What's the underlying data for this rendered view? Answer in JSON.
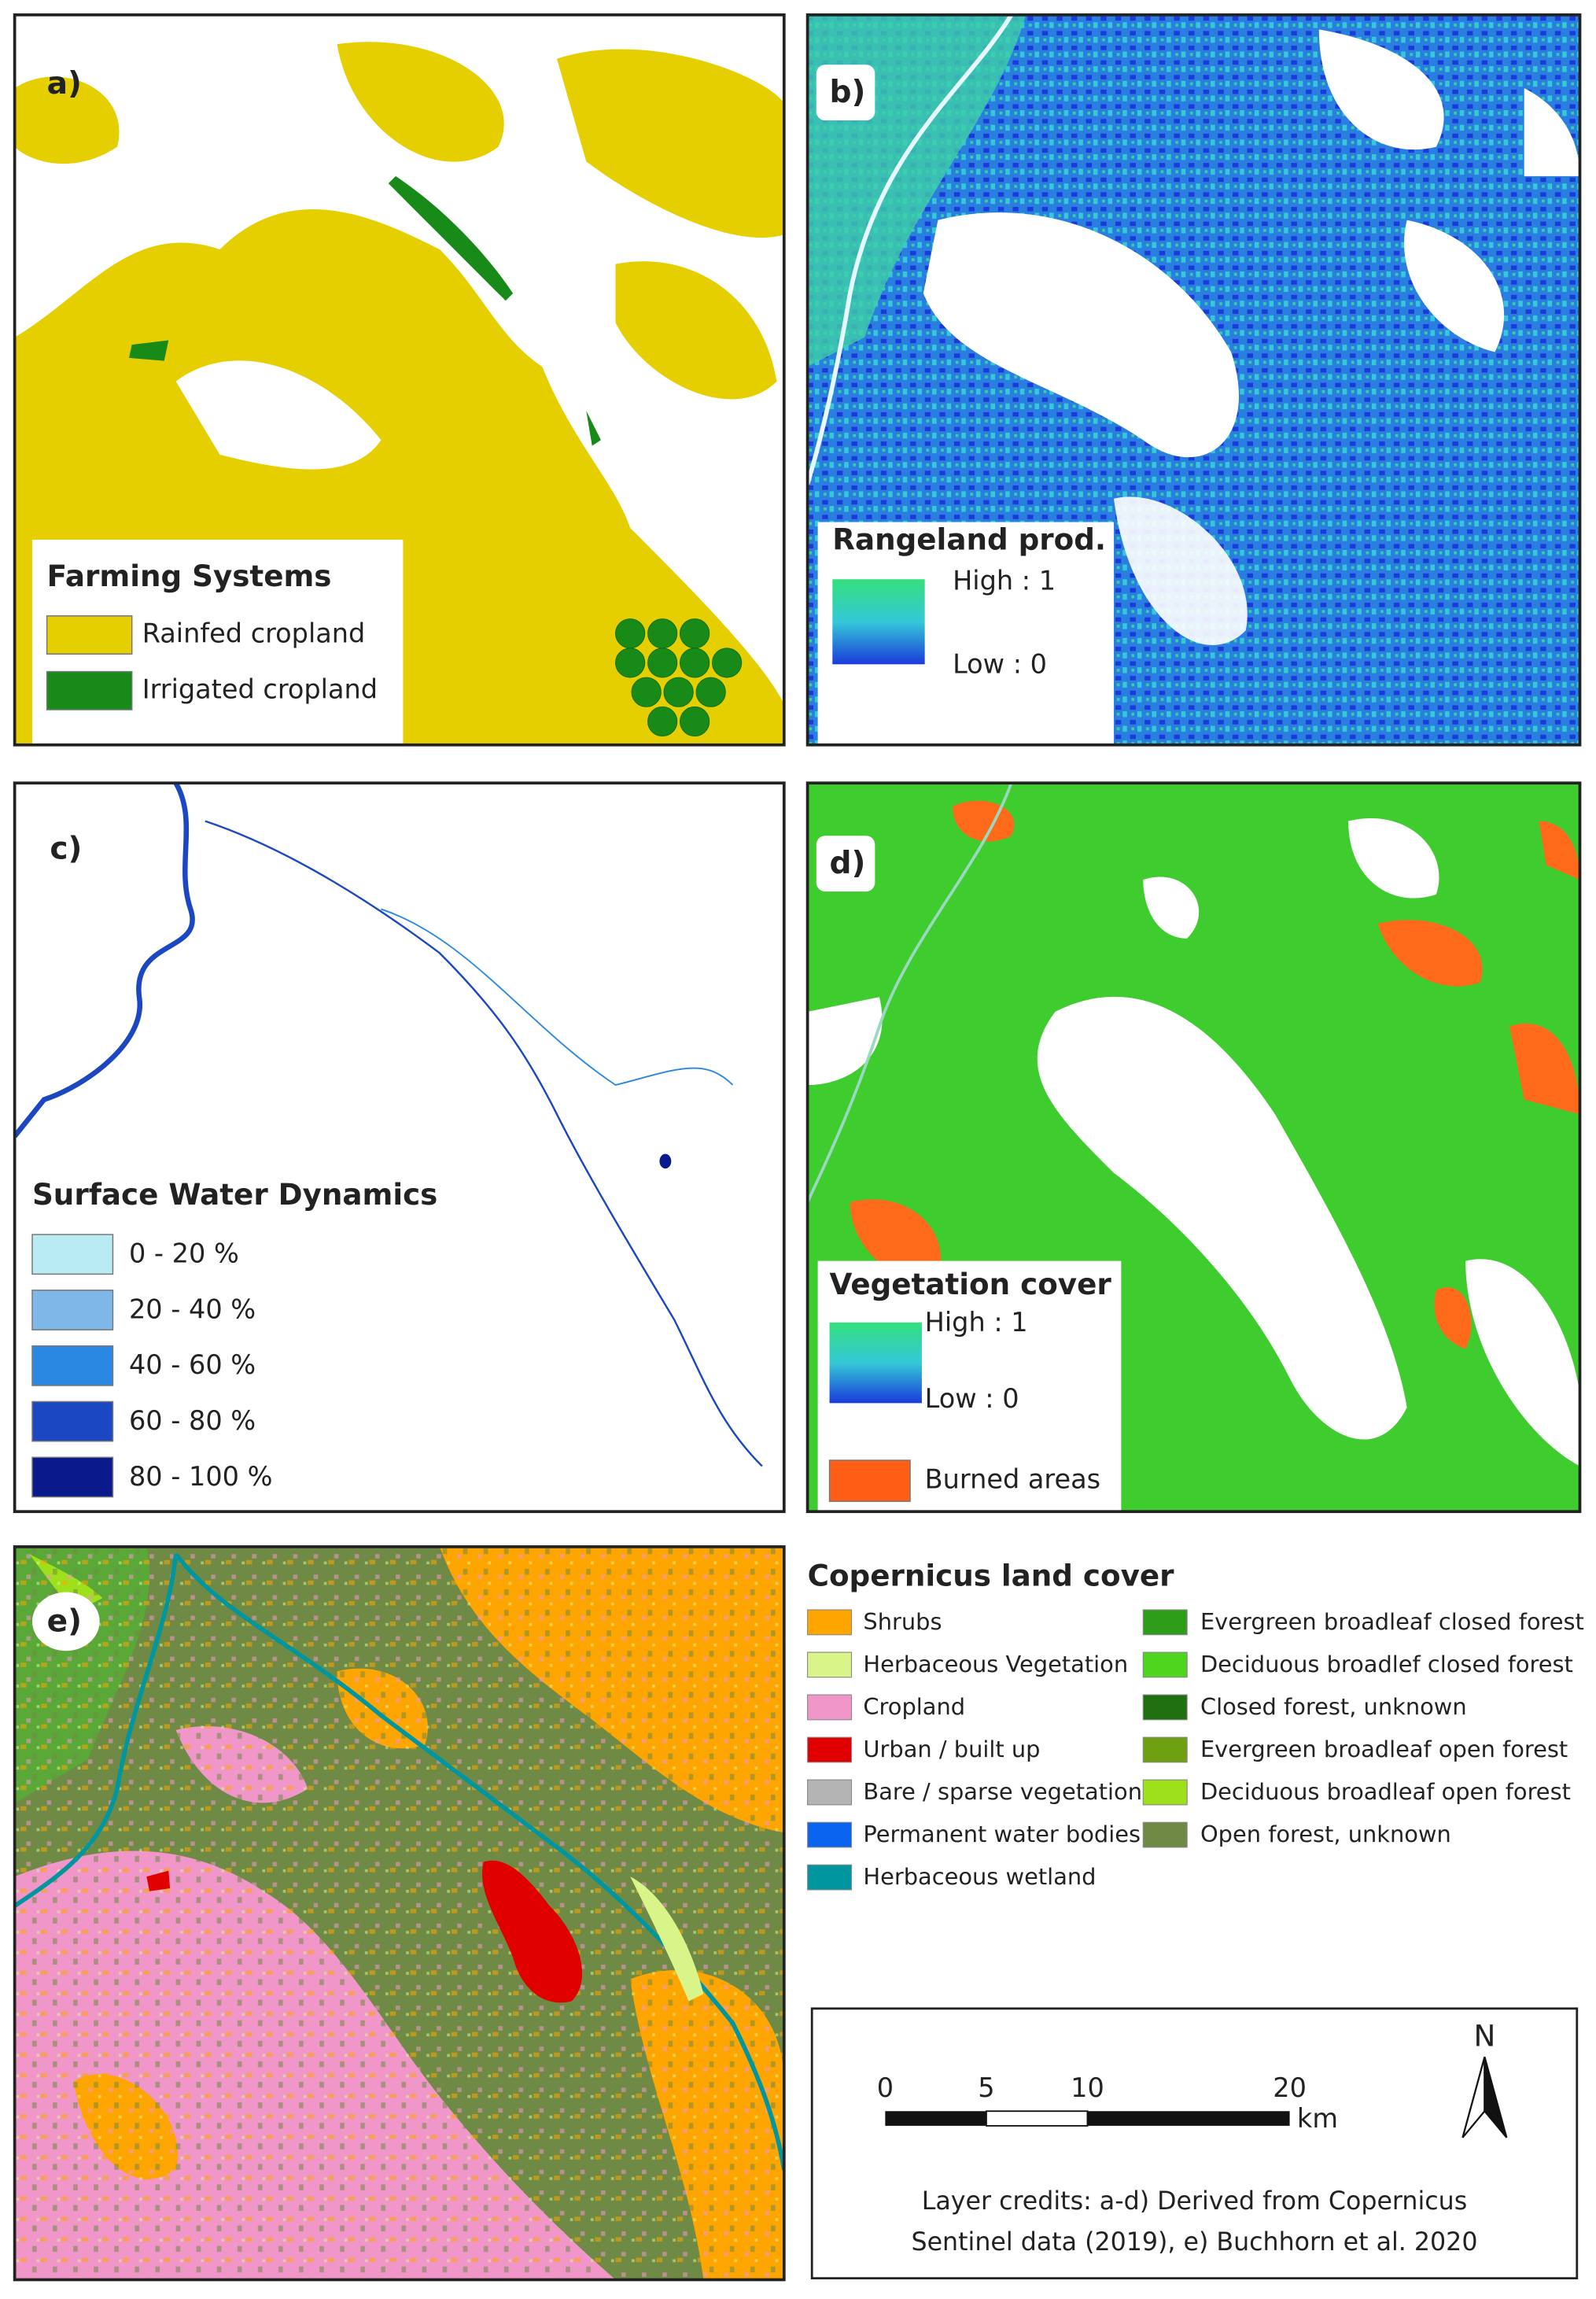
{
  "panels": [
    {
      "label": "a)",
      "legend": {
        "title": "Farming Systems",
        "items": [
          {
            "label": "Rainfed cropland",
            "color": "#e6cf00"
          },
          {
            "label": "Irrigated cropland",
            "color": "#178a17"
          }
        ]
      }
    },
    {
      "label": "b)",
      "legend": {
        "title": "Rangeland prod.",
        "high": "High : 1",
        "low": "Low : 0",
        "colors": [
          "#33e07c",
          "#35c8d8",
          "#1a3ad9"
        ]
      }
    },
    {
      "label": "c)",
      "legend": {
        "title": "Surface Water Dynamics",
        "items": [
          {
            "label": "0 - 20 %",
            "color": "#b9ecf2"
          },
          {
            "label": "20 - 40 %",
            "color": "#7db8e8"
          },
          {
            "label": "40 - 60 %",
            "color": "#2a88e2"
          },
          {
            "label": "60 - 80 %",
            "color": "#1c47c2"
          },
          {
            "label": "80 - 100 %",
            "color": "#0a1a8c"
          }
        ]
      }
    },
    {
      "label": "d)",
      "legend": {
        "title": "Vegetation cover",
        "high": "High : 1",
        "low": "Low : 0",
        "colors": [
          "#33e07c",
          "#35c8d8",
          "#1a3ad9"
        ],
        "burned": {
          "label": "Burned areas",
          "color": "#ff5e14"
        }
      }
    },
    {
      "label": "e)"
    }
  ],
  "land_cover": {
    "title": "Copernicus land cover",
    "columns": [
      [
        {
          "label": "Shrubs",
          "color": "#ffa500"
        },
        {
          "label": "Herbaceous Vegetation",
          "color": "#d9f58a"
        },
        {
          "label": "Cropland",
          "color": "#f096c8"
        },
        {
          "label": "Urban / built up",
          "color": "#e00000"
        },
        {
          "label": "Bare / sparse vegetation",
          "color": "#b4b4b4"
        },
        {
          "label": "Permanent water bodies",
          "color": "#0a64f0"
        },
        {
          "label": "Herbaceous wetland",
          "color": "#0096a0"
        }
      ],
      [
        {
          "label": "Evergreen broadleaf closed forest",
          "color": "#2e9e1a"
        },
        {
          "label": "Deciduous broadlef closed forest",
          "color": "#4ed61e"
        },
        {
          "label": "Closed forest, unknown",
          "color": "#1e7010"
        },
        {
          "label": "Evergreen broadleaf open forest",
          "color": "#6ea012"
        },
        {
          "label": "Deciduous broadleaf open forest",
          "color": "#9ee01a"
        },
        {
          "label": "Open forest, unknown",
          "color": "#6f8a44"
        }
      ]
    ]
  },
  "scale_bar": {
    "ticks": [
      "0",
      "5",
      "10",
      "20"
    ],
    "unit": "km",
    "north": "N"
  },
  "credits": [
    "Layer credits: a-d) Derived from Copernicus",
    "Sentinel data (2019), e) Buchhorn et al. 2020"
  ]
}
